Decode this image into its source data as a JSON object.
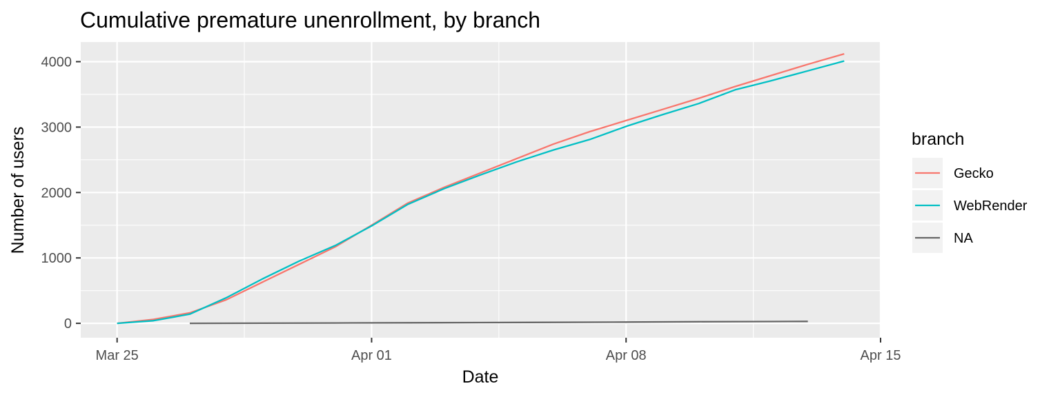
{
  "chart_data": {
    "type": "line",
    "title": "Cumulative premature unenrollment, by branch",
    "xlabel": "Date",
    "ylabel": "Number of users",
    "x_axis": {
      "type": "date",
      "range": [
        "2020-03-24",
        "2020-04-15"
      ],
      "ticks": [
        {
          "date": "2020-03-25",
          "label": "Mar 25"
        },
        {
          "date": "2020-04-01",
          "label": "Apr 01"
        },
        {
          "date": "2020-04-08",
          "label": "Apr 08"
        },
        {
          "date": "2020-04-15",
          "label": "Apr 15"
        }
      ]
    },
    "y_axis": {
      "range": [
        -220,
        4300
      ],
      "ticks": [
        0,
        1000,
        2000,
        3000,
        4000
      ],
      "tick_labels": [
        "0",
        "1000",
        "2000",
        "3000",
        "4000"
      ]
    },
    "grid": true,
    "legend": {
      "title": "branch",
      "placement": "right"
    },
    "series": [
      {
        "name": "Gecko",
        "color": "#F8766D",
        "points": [
          [
            "2020-03-25",
            0
          ],
          [
            "2020-03-26",
            60
          ],
          [
            "2020-03-27",
            160
          ],
          [
            "2020-03-28",
            360
          ],
          [
            "2020-03-29",
            630
          ],
          [
            "2020-03-30",
            900
          ],
          [
            "2020-03-31",
            1170
          ],
          [
            "2020-04-01",
            1500
          ],
          [
            "2020-04-02",
            1840
          ],
          [
            "2020-04-03",
            2080
          ],
          [
            "2020-04-04",
            2300
          ],
          [
            "2020-04-05",
            2520
          ],
          [
            "2020-04-06",
            2740
          ],
          [
            "2020-04-07",
            2930
          ],
          [
            "2020-04-08",
            3100
          ],
          [
            "2020-04-09",
            3270
          ],
          [
            "2020-04-10",
            3440
          ],
          [
            "2020-04-11",
            3620
          ],
          [
            "2020-04-12",
            3790
          ],
          [
            "2020-04-13",
            3960
          ],
          [
            "2020-04-14",
            4120
          ]
        ]
      },
      {
        "name": "WebRender",
        "color": "#00BFC4",
        "points": [
          [
            "2020-03-25",
            0
          ],
          [
            "2020-03-26",
            40
          ],
          [
            "2020-03-27",
            140
          ],
          [
            "2020-03-28",
            390
          ],
          [
            "2020-03-29",
            680
          ],
          [
            "2020-03-30",
            950
          ],
          [
            "2020-03-31",
            1190
          ],
          [
            "2020-04-01",
            1490
          ],
          [
            "2020-04-02",
            1820
          ],
          [
            "2020-04-03",
            2060
          ],
          [
            "2020-04-04",
            2270
          ],
          [
            "2020-04-05",
            2470
          ],
          [
            "2020-04-06",
            2650
          ],
          [
            "2020-04-07",
            2810
          ],
          [
            "2020-04-08",
            3010
          ],
          [
            "2020-04-09",
            3190
          ],
          [
            "2020-04-10",
            3360
          ],
          [
            "2020-04-11",
            3570
          ],
          [
            "2020-04-12",
            3710
          ],
          [
            "2020-04-13",
            3860
          ],
          [
            "2020-04-14",
            4010
          ]
        ]
      },
      {
        "name": "NA",
        "color": "#666666",
        "points": [
          [
            "2020-03-27",
            0
          ],
          [
            "2020-03-29",
            2
          ],
          [
            "2020-03-31",
            5
          ],
          [
            "2020-04-02",
            9
          ],
          [
            "2020-04-04",
            12
          ],
          [
            "2020-04-06",
            15
          ],
          [
            "2020-04-08",
            19
          ],
          [
            "2020-04-10",
            24
          ],
          [
            "2020-04-12",
            28
          ],
          [
            "2020-04-13",
            30
          ]
        ]
      }
    ]
  }
}
